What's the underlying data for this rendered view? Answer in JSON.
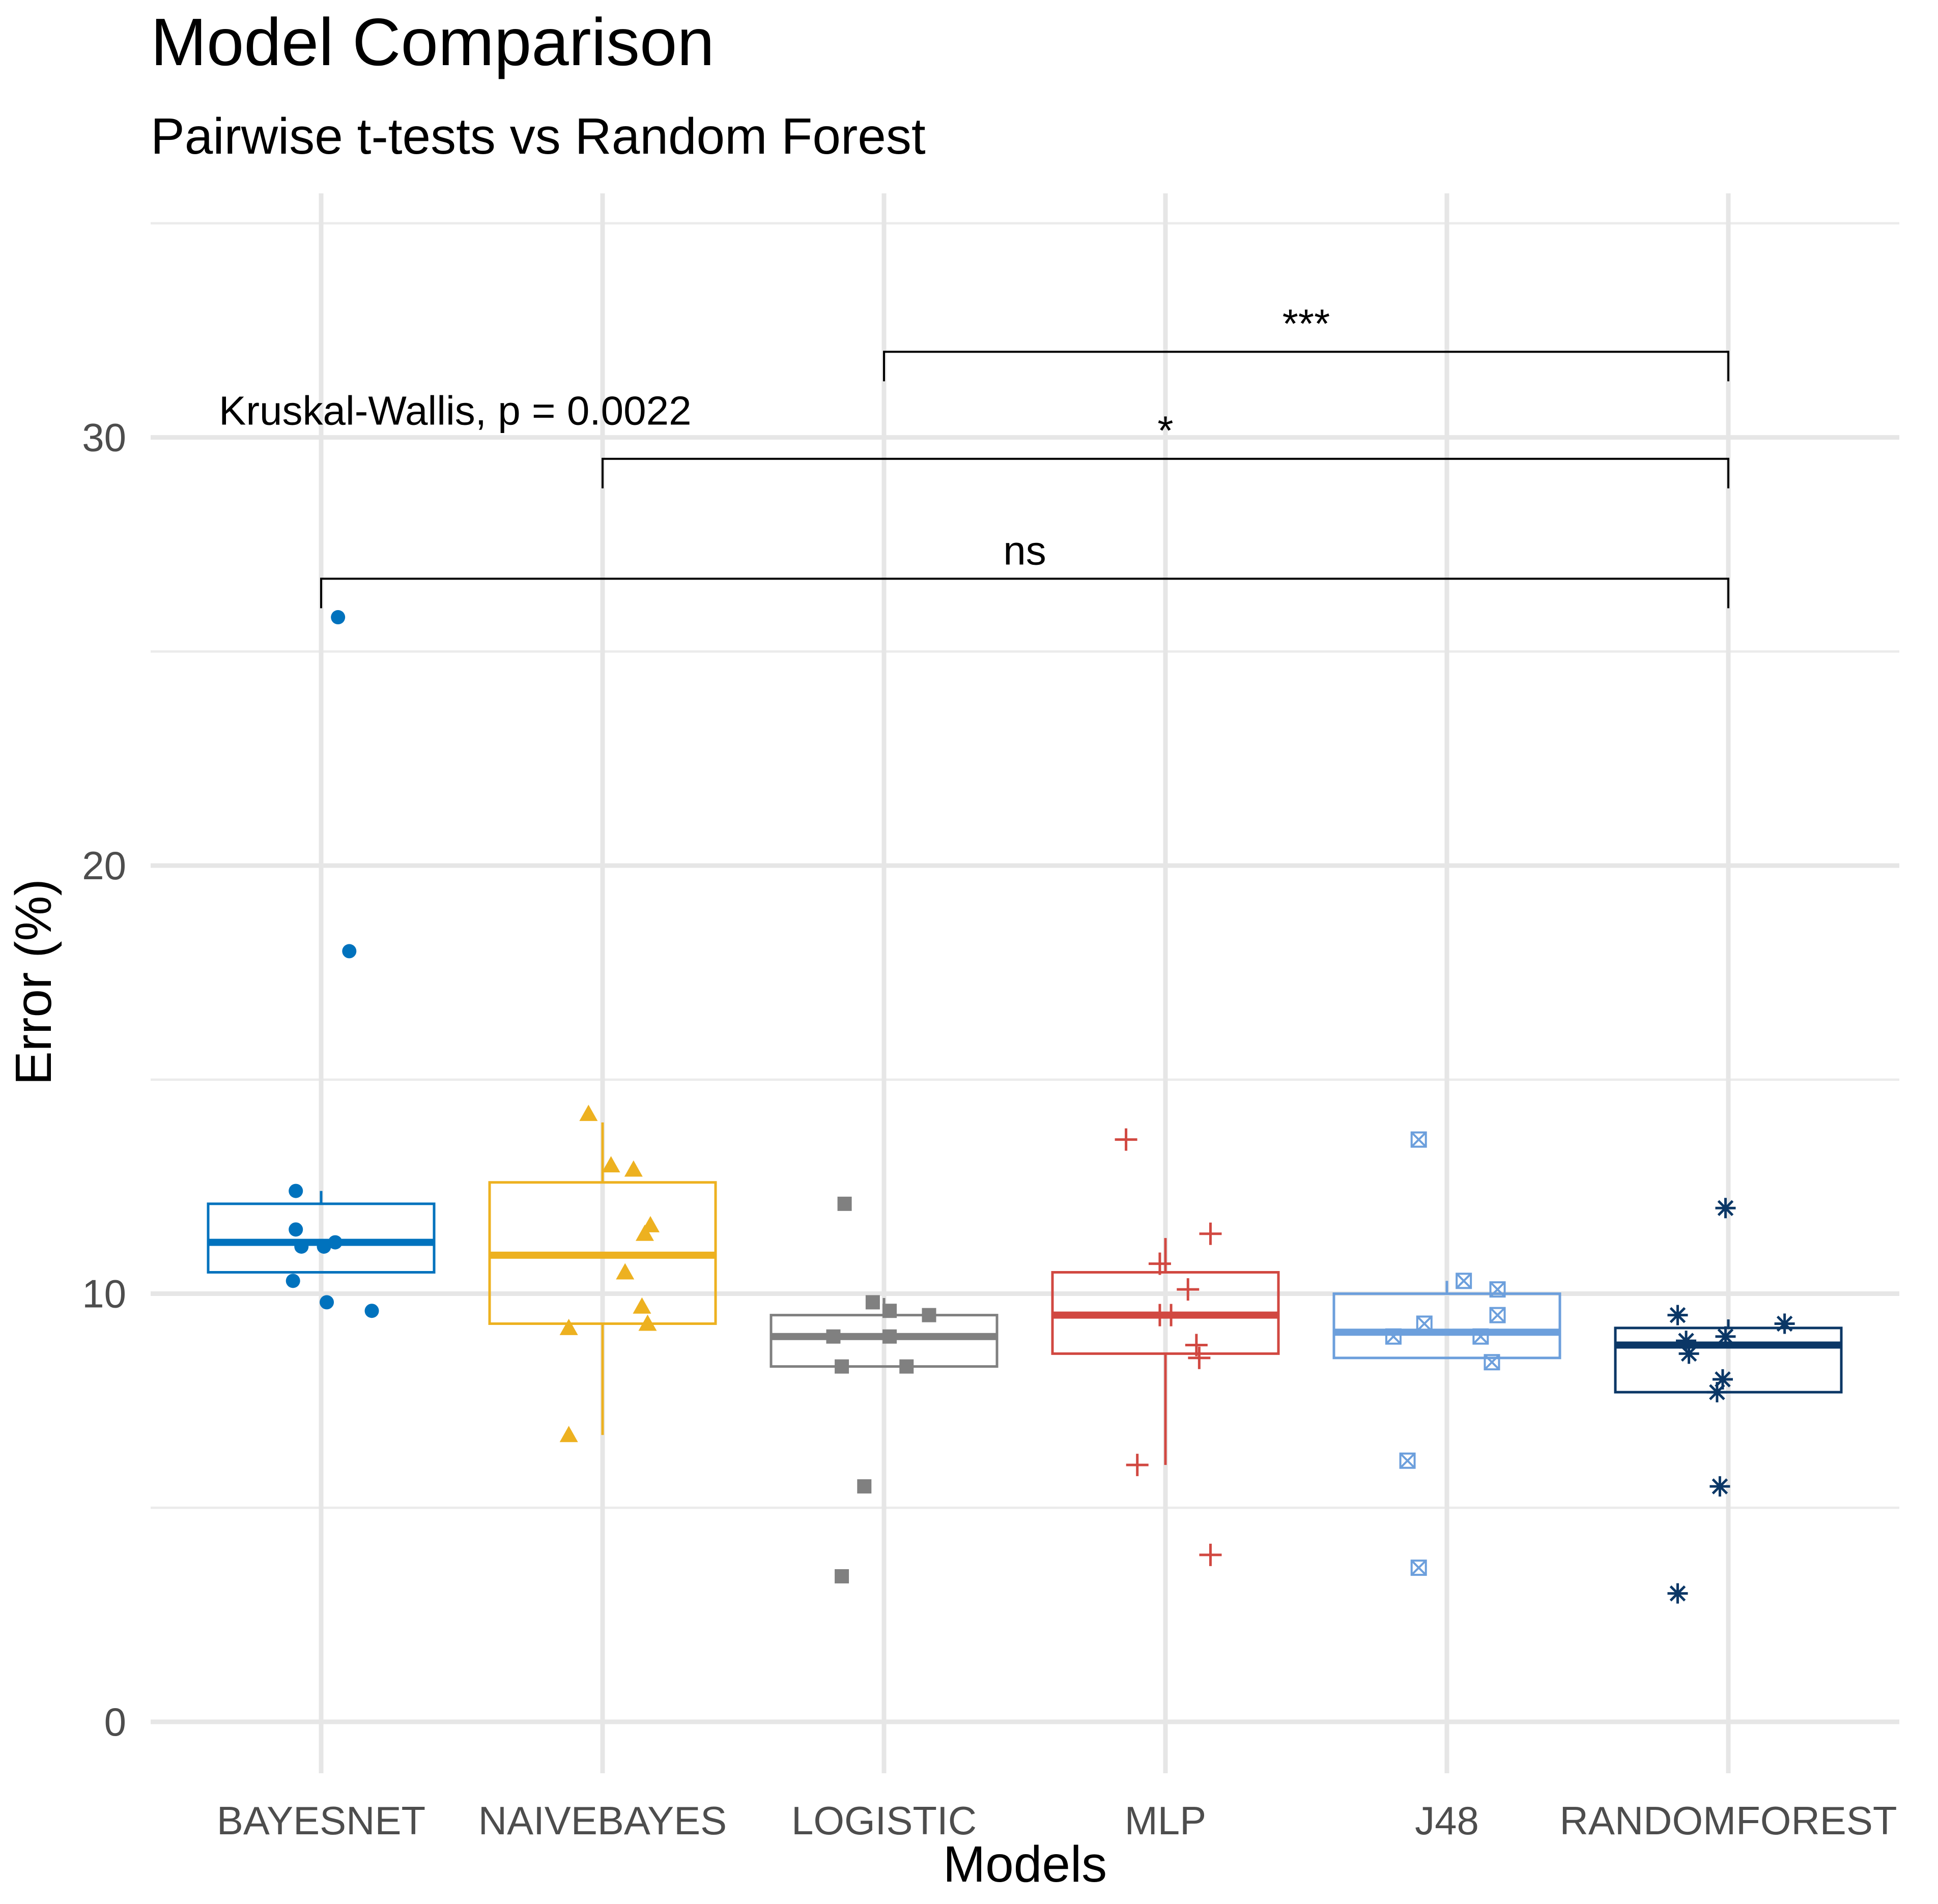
{
  "chart_data": {
    "type": "box",
    "title": "Model Comparison",
    "subtitle": "Pairwise t-tests vs Random Forest",
    "xlabel": "Models",
    "ylabel": "Error (%)",
    "ylim": [
      -1.2,
      35.7
    ],
    "yticks": [
      0,
      10,
      20,
      30
    ],
    "grid": true,
    "categories": [
      "BAYESNET",
      "NAIVEBAYES",
      "LOGISTIC",
      "MLP",
      "J48",
      "RANDOMFOREST"
    ],
    "series": [
      {
        "name": "BAYESNET",
        "color": "#0072bd",
        "shape": "circle",
        "box": {
          "min": 10.5,
          "q1": 10.5,
          "median": 11.2,
          "q3": 12.1,
          "max": 12.4
        },
        "points": [
          [
            0.06,
            25.8
          ],
          [
            0.1,
            18.0
          ],
          [
            -0.09,
            12.4
          ],
          [
            -0.09,
            11.5
          ],
          [
            -0.07,
            11.1
          ],
          [
            0.01,
            11.1
          ],
          [
            0.05,
            11.2
          ],
          [
            -0.1,
            10.3
          ],
          [
            0.02,
            9.8
          ],
          [
            0.18,
            9.6
          ]
        ]
      },
      {
        "name": "NAIVEBAYES",
        "color": "#edb120",
        "shape": "triangle",
        "box": {
          "min": 6.7,
          "q1": 9.3,
          "median": 10.9,
          "q3": 12.6,
          "max": 14.0
        },
        "points": [
          [
            -0.05,
            14.2
          ],
          [
            0.03,
            13.0
          ],
          [
            0.11,
            12.9
          ],
          [
            0.17,
            11.6
          ],
          [
            0.15,
            11.4
          ],
          [
            0.08,
            10.5
          ],
          [
            0.14,
            9.7
          ],
          [
            0.16,
            9.3
          ],
          [
            -0.12,
            9.2
          ],
          [
            -0.12,
            6.7
          ]
        ]
      },
      {
        "name": "LOGISTIC",
        "color": "#808080",
        "shape": "square",
        "box": {
          "min": 8.3,
          "q1": 8.3,
          "median": 9.0,
          "q3": 9.5,
          "max": 9.9
        },
        "points": [
          [
            -0.14,
            12.1
          ],
          [
            -0.04,
            9.8
          ],
          [
            0.02,
            9.6
          ],
          [
            0.16,
            9.5
          ],
          [
            -0.18,
            9.0
          ],
          [
            0.02,
            9.0
          ],
          [
            -0.15,
            8.3
          ],
          [
            0.08,
            8.3
          ],
          [
            -0.07,
            5.5
          ],
          [
            -0.15,
            3.4
          ]
        ]
      },
      {
        "name": "MLP",
        "color": "#d14841",
        "shape": "plus",
        "box": {
          "min": 6.0,
          "q1": 8.6,
          "median": 9.5,
          "q3": 10.5,
          "max": 11.3
        },
        "points": [
          [
            -0.14,
            13.6
          ],
          [
            0.16,
            11.4
          ],
          [
            -0.02,
            10.7
          ],
          [
            0.08,
            10.1
          ],
          [
            -0.02,
            9.5
          ],
          [
            0.02,
            9.5
          ],
          [
            0.11,
            8.8
          ],
          [
            0.12,
            8.5
          ],
          [
            -0.1,
            6.0
          ],
          [
            0.16,
            3.9
          ]
        ]
      },
      {
        "name": "J48",
        "color": "#6c9fdc",
        "shape": "boxx",
        "box": {
          "min": 8.5,
          "q1": 8.5,
          "median": 9.1,
          "q3": 10.0,
          "max": 10.3
        },
        "points": [
          [
            -0.1,
            13.6
          ],
          [
            0.06,
            10.3
          ],
          [
            0.18,
            10.1
          ],
          [
            0.18,
            9.5
          ],
          [
            -0.08,
            9.3
          ],
          [
            -0.19,
            9.0
          ],
          [
            0.12,
            9.0
          ],
          [
            0.16,
            8.4
          ],
          [
            -0.14,
            6.1
          ],
          [
            -0.1,
            3.6
          ]
        ]
      },
      {
        "name": "RANDOMFOREST",
        "color": "#0b3766",
        "shape": "asterisk",
        "box": {
          "min": 7.7,
          "q1": 7.7,
          "median": 8.8,
          "q3": 9.2,
          "max": 9.4
        },
        "points": [
          [
            -0.01,
            12.0
          ],
          [
            -0.18,
            9.5
          ],
          [
            0.2,
            9.3
          ],
          [
            -0.15,
            8.9
          ],
          [
            -0.01,
            9.0
          ],
          [
            -0.14,
            8.6
          ],
          [
            -0.04,
            7.7
          ],
          [
            -0.02,
            8.0
          ],
          [
            -0.03,
            5.5
          ],
          [
            -0.18,
            3.0
          ]
        ]
      }
    ],
    "comparisons": [
      {
        "from": "LOGISTIC",
        "to": "RANDOMFOREST",
        "y": 32.0,
        "label": "***"
      },
      {
        "from": "NAIVEBAYES",
        "to": "RANDOMFOREST",
        "y": 29.5,
        "label": "*"
      },
      {
        "from": "BAYESNET",
        "to": "RANDOMFOREST",
        "y": 26.7,
        "label": "ns"
      }
    ],
    "annotation": {
      "text": "Kruskal-Wallis, p = 0.0022",
      "x": "BAYESNET",
      "y": 30.3
    }
  }
}
